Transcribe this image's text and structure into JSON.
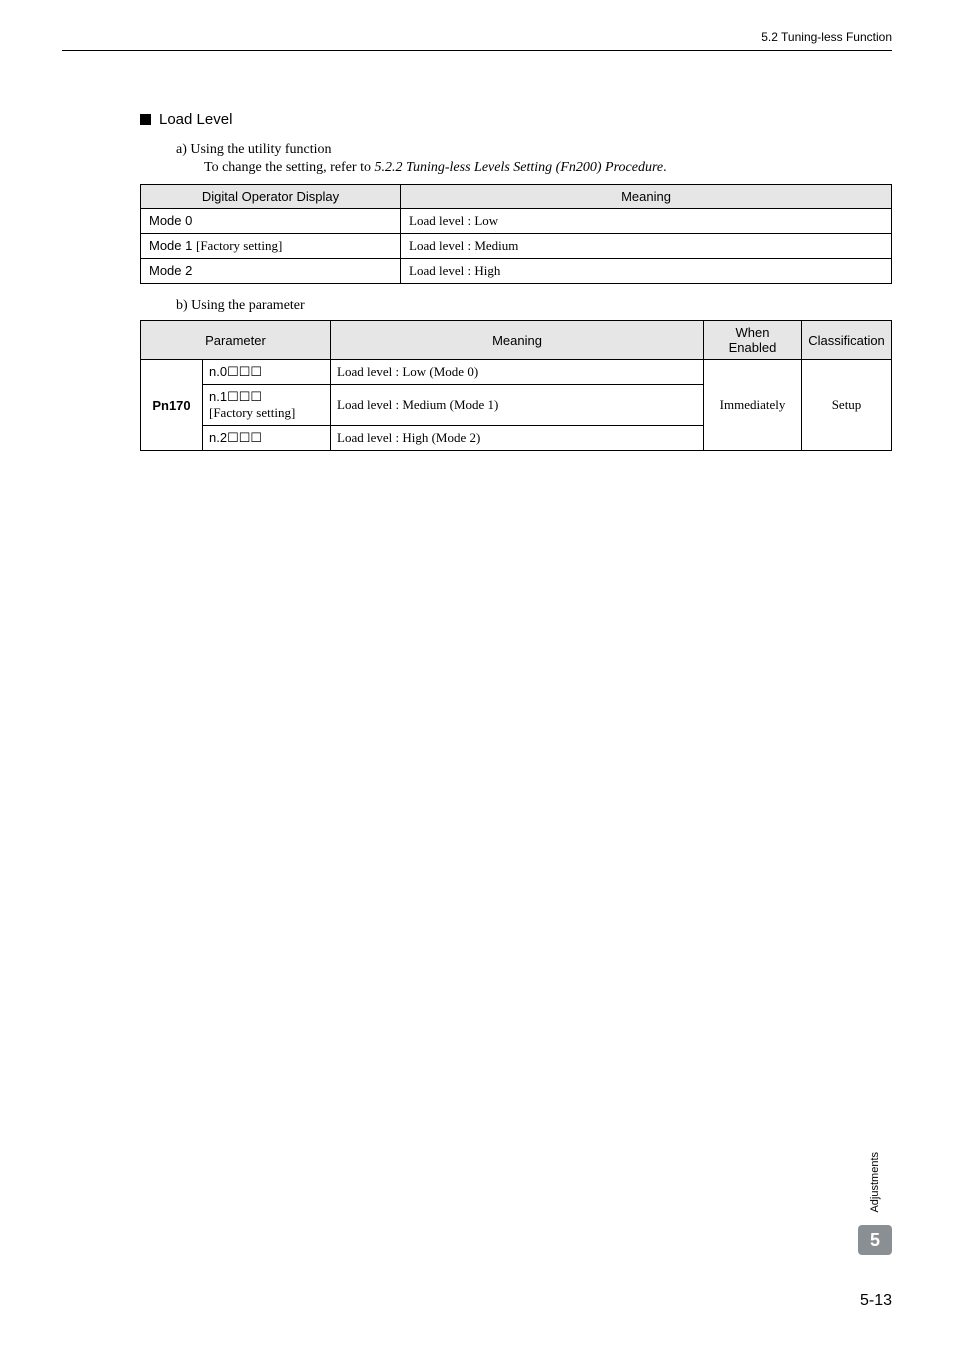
{
  "header": {
    "section_ref": "5.2  Tuning-less Function"
  },
  "section": {
    "title": "Load Level",
    "sub_a_label": "a) Using the utility function",
    "sub_a_text_prefix": "To change the setting, refer to ",
    "sub_a_ref": "5.2.2  Tuning-less Levels Setting (Fn200) Procedure",
    "sub_a_text_suffix": ".",
    "sub_b_label": "b) Using the parameter"
  },
  "table1": {
    "headers": {
      "col1": "Digital Operator Display",
      "col2": "Meaning"
    },
    "rows": [
      {
        "display": "Mode 0",
        "factory": "",
        "meaning": "Load level : Low"
      },
      {
        "display": "Mode 1 ",
        "factory": "[Factory setting]",
        "meaning": "Load level : Medium"
      },
      {
        "display": "Mode 2",
        "factory": "",
        "meaning": "Load level : High"
      }
    ]
  },
  "table2": {
    "headers": {
      "c1": "Parameter",
      "c2": "Meaning",
      "c3": "When Enabled",
      "c4": "Classification"
    },
    "param_label": "Pn170",
    "rows": [
      {
        "code": "n.0",
        "boxes": "☐☐☐",
        "factory": "",
        "meaning": "Load level : Low (Mode 0)"
      },
      {
        "code": "n.1",
        "boxes": "☐☐☐",
        "factory": "[Factory setting]",
        "meaning": "Load level : Medium (Mode 1)"
      },
      {
        "code": "n.2",
        "boxes": "☐☐☐",
        "factory": "",
        "meaning": "Load level : High (Mode 2)"
      }
    ],
    "when_enabled": "Immediately",
    "classification": "Setup"
  },
  "sidebar": {
    "label": "Adjustments",
    "chapter": "5"
  },
  "page_number": "5-13",
  "colors": {
    "header_bg": "#e6e6e6",
    "tab_bg": "#8a8f94"
  }
}
